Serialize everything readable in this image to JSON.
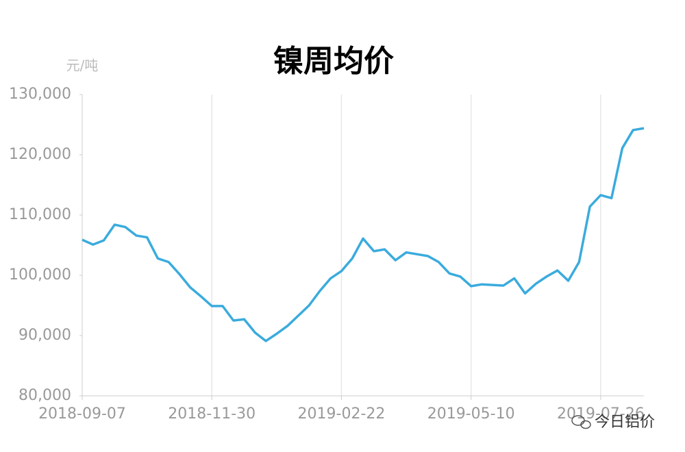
{
  "chart_data": {
    "type": "line",
    "title": "镍周均价",
    "y_unit": "元/吨",
    "watermark": "今日铝价",
    "categories": [
      "2018-09-07",
      null,
      null,
      null,
      null,
      null,
      null,
      null,
      null,
      null,
      null,
      null,
      "2018-11-30",
      null,
      null,
      null,
      null,
      null,
      null,
      null,
      null,
      null,
      null,
      null,
      "2019-02-22",
      null,
      null,
      null,
      null,
      null,
      null,
      null,
      null,
      null,
      null,
      null,
      "2019-05-10",
      null,
      null,
      null,
      null,
      null,
      null,
      null,
      null,
      null,
      null,
      null,
      "2019-07-26",
      null,
      null,
      null,
      null
    ],
    "series": [
      {
        "name": "镍周均价",
        "color": "#3aabdd",
        "values": [
          105900,
          105100,
          105800,
          108400,
          108000,
          106600,
          106300,
          102800,
          102200,
          100200,
          98000,
          96500,
          94900,
          94900,
          92500,
          92700,
          90500,
          89100,
          90300,
          91600,
          93300,
          95000,
          97400,
          99500,
          100700,
          102800,
          106100,
          104000,
          104300,
          102500,
          103800,
          103500,
          103200,
          102200,
          100300,
          99800,
          98200,
          98500,
          98400,
          98300,
          99500,
          97000,
          98600,
          99800,
          100800,
          99100,
          102200,
          111400,
          113300,
          112800,
          121100,
          124100,
          124400
        ]
      }
    ],
    "ylim": [
      80000,
      130000
    ],
    "yticks": [
      {
        "value": 80000,
        "label": "80,000"
      },
      {
        "value": 90000,
        "label": "90,000"
      },
      {
        "value": 100000,
        "label": "100,000"
      },
      {
        "value": 110000,
        "label": "110,000"
      },
      {
        "value": 120000,
        "label": "120,000"
      },
      {
        "value": 130000,
        "label": "130,000"
      }
    ],
    "grid": true
  }
}
